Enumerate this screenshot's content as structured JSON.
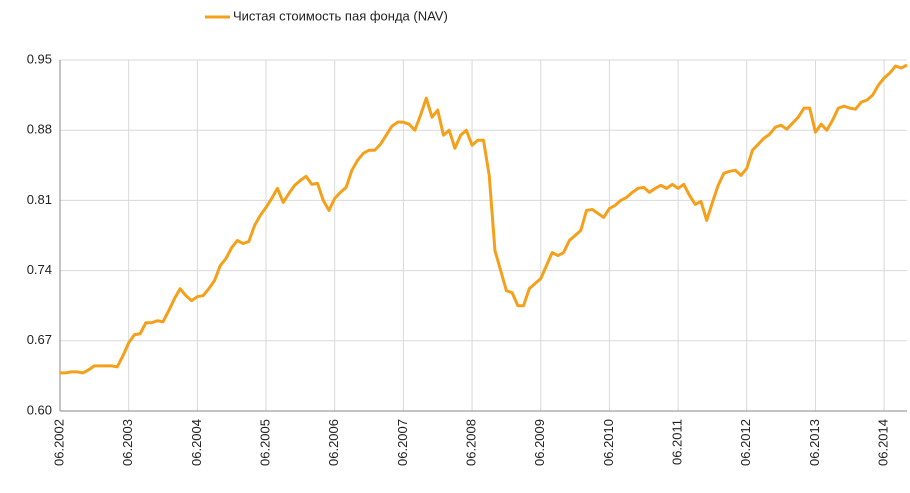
{
  "chart_data": {
    "type": "line",
    "categories": [
      "06.2002",
      null,
      null,
      null,
      null,
      null,
      null,
      null,
      null,
      null,
      null,
      null,
      "06.2003",
      null,
      null,
      null,
      null,
      null,
      null,
      null,
      null,
      null,
      null,
      null,
      "06.2004",
      null,
      null,
      null,
      null,
      null,
      null,
      null,
      null,
      null,
      null,
      null,
      "06.2005",
      null,
      null,
      null,
      null,
      null,
      null,
      null,
      null,
      null,
      null,
      null,
      "06.2006",
      null,
      null,
      null,
      null,
      null,
      null,
      null,
      null,
      null,
      null,
      null,
      "06.2007",
      null,
      null,
      null,
      null,
      null,
      null,
      null,
      null,
      null,
      null,
      null,
      "06.2008",
      null,
      null,
      null,
      null,
      null,
      null,
      null,
      null,
      null,
      null,
      null,
      "06.2009",
      null,
      null,
      null,
      null,
      null,
      null,
      null,
      null,
      null,
      null,
      null,
      "06.2010",
      null,
      null,
      null,
      null,
      null,
      null,
      null,
      null,
      null,
      null,
      null,
      "06.2011",
      null,
      null,
      null,
      null,
      null,
      null,
      null,
      null,
      null,
      null,
      null,
      "06.2012",
      null,
      null,
      null,
      null,
      null,
      null,
      null,
      null,
      null,
      null,
      null,
      "06.2013",
      null,
      null,
      null,
      null,
      null,
      null,
      null,
      null,
      null,
      null,
      null,
      "06.2014",
      null,
      null,
      null,
      null
    ],
    "series": [
      {
        "name": "Чистая стоимость пая фонда (NAV)",
        "color": "#f5a01a",
        "values": [
          0.638,
          0.638,
          0.639,
          0.639,
          0.638,
          0.641,
          0.645,
          0.645,
          0.645,
          0.645,
          0.644,
          0.655,
          0.668,
          0.676,
          0.677,
          0.688,
          0.688,
          0.69,
          0.689,
          0.7,
          0.712,
          0.722,
          0.715,
          0.71,
          0.714,
          0.715,
          0.722,
          0.73,
          0.745,
          0.752,
          0.763,
          0.77,
          0.767,
          0.769,
          0.785,
          0.795,
          0.803,
          0.812,
          0.822,
          0.808,
          0.817,
          0.825,
          0.83,
          0.834,
          0.826,
          0.827,
          0.81,
          0.8,
          0.812,
          0.818,
          0.823,
          0.84,
          0.85,
          0.857,
          0.86,
          0.86,
          0.866,
          0.875,
          0.884,
          0.888,
          0.888,
          0.886,
          0.88,
          0.895,
          0.912,
          0.893,
          0.9,
          0.875,
          0.88,
          0.862,
          0.875,
          0.88,
          0.865,
          0.87,
          0.87,
          0.835,
          0.76,
          0.74,
          0.72,
          0.718,
          0.705,
          0.705,
          0.722,
          0.727,
          0.732,
          0.745,
          0.758,
          0.755,
          0.758,
          0.77,
          0.775,
          0.78,
          0.8,
          0.801,
          0.797,
          0.793,
          0.802,
          0.805,
          0.81,
          0.813,
          0.818,
          0.822,
          0.823,
          0.818,
          0.822,
          0.825,
          0.822,
          0.826,
          0.822,
          0.826,
          0.815,
          0.806,
          0.809,
          0.79,
          0.808,
          0.825,
          0.837,
          0.839,
          0.84,
          0.835,
          0.842,
          0.86,
          0.866,
          0.872,
          0.876,
          0.883,
          0.885,
          0.881,
          0.887,
          0.893,
          0.902,
          0.902,
          0.878,
          0.886,
          0.88,
          0.89,
          0.902,
          0.904,
          0.902,
          0.901,
          0.908,
          0.91,
          0.915,
          0.925,
          0.932,
          0.937,
          0.944,
          0.942,
          0.945
        ]
      }
    ],
    "ylim": [
      0.6,
      0.95
    ],
    "yticks": [
      {
        "value": 0.6,
        "label": "0.60"
      },
      0.67,
      0.74,
      0.81,
      0.88,
      0.95
    ],
    "grid": true,
    "legend": "top"
  }
}
